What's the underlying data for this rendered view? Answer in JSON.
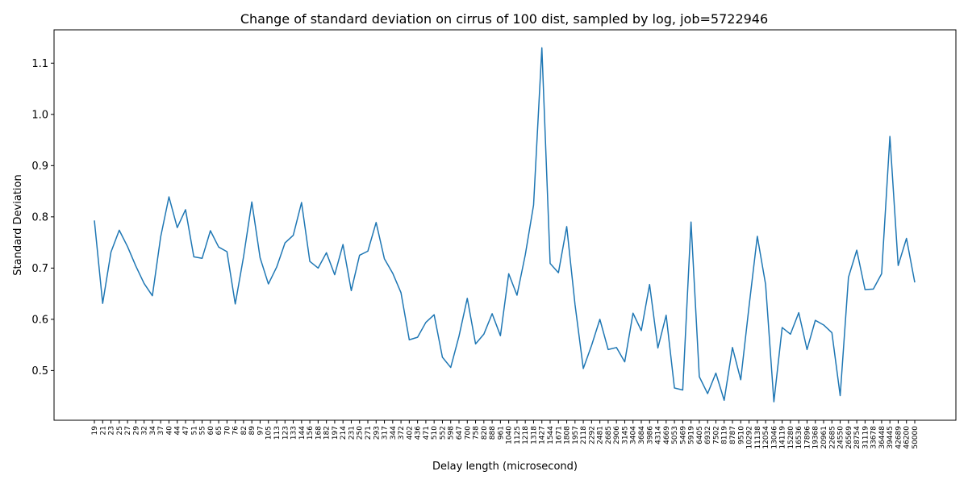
{
  "chart_data": {
    "type": "line",
    "title": "Change of standard deviation on cirrus of 100 dist, sampled by log, job=5722946",
    "xlabel": "Delay length (microsecond)",
    "ylabel": "Standard Deviation",
    "ylim": [
      0.403,
      1.165
    ],
    "yticks": [
      "0.5",
      "0.6",
      "0.7",
      "0.8",
      "0.9",
      "1.0",
      "1.1"
    ],
    "grid": false,
    "line_color": "#1f77b4",
    "categories": [
      "19",
      "21",
      "23",
      "25",
      "27",
      "29",
      "32",
      "34",
      "37",
      "40",
      "44",
      "47",
      "51",
      "55",
      "60",
      "65",
      "70",
      "76",
      "82",
      "89",
      "97",
      "105",
      "113",
      "123",
      "133",
      "144",
      "156",
      "168",
      "182",
      "197",
      "214",
      "231",
      "250",
      "271",
      "293",
      "317",
      "344",
      "372",
      "402",
      "436",
      "471",
      "510",
      "552",
      "598",
      "647",
      "700",
      "758",
      "820",
      "888",
      "961",
      "1040",
      "1125",
      "1218",
      "1318",
      "1427",
      "1544",
      "1671",
      "1808",
      "1957",
      "2118",
      "2292",
      "2481",
      "2685",
      "2906",
      "3145",
      "3404",
      "3684",
      "3986",
      "4314",
      "4669",
      "5053",
      "5469",
      "5919",
      "6405",
      "6932",
      "7502",
      "8119",
      "8787",
      "9510",
      "10292",
      "11138",
      "12054",
      "13046",
      "14119",
      "15280",
      "16536",
      "17896",
      "19368",
      "20961",
      "22685",
      "24550",
      "26569",
      "28754",
      "31119",
      "33678",
      "36448",
      "39445",
      "42689",
      "46200",
      "50000"
    ],
    "values": [
      0.793,
      0.631,
      0.731,
      0.774,
      0.742,
      0.704,
      0.67,
      0.646,
      0.761,
      0.839,
      0.779,
      0.814,
      0.722,
      0.719,
      0.773,
      0.741,
      0.732,
      0.63,
      0.722,
      0.829,
      0.72,
      0.669,
      0.702,
      0.749,
      0.764,
      0.828,
      0.713,
      0.7,
      0.73,
      0.687,
      0.746,
      0.656,
      0.725,
      0.733,
      0.789,
      0.718,
      0.69,
      0.652,
      0.56,
      0.565,
      0.594,
      0.609,
      0.526,
      0.506,
      0.567,
      0.641,
      0.552,
      0.571,
      0.611,
      0.568,
      0.689,
      0.647,
      0.726,
      0.823,
      1.13,
      0.709,
      0.691,
      0.781,
      0.629,
      0.504,
      0.549,
      0.6,
      0.541,
      0.545,
      0.517,
      0.612,
      0.578,
      0.668,
      0.544,
      0.608,
      0.466,
      0.462,
      0.79,
      0.488,
      0.455,
      0.495,
      0.442,
      0.545,
      0.482,
      0.625,
      0.762,
      0.668,
      0.439,
      0.584,
      0.571,
      0.613,
      0.541,
      0.598,
      0.589,
      0.574,
      0.451,
      0.682,
      0.735,
      0.658,
      0.659,
      0.689,
      0.957,
      0.705,
      0.758,
      0.672
    ]
  }
}
